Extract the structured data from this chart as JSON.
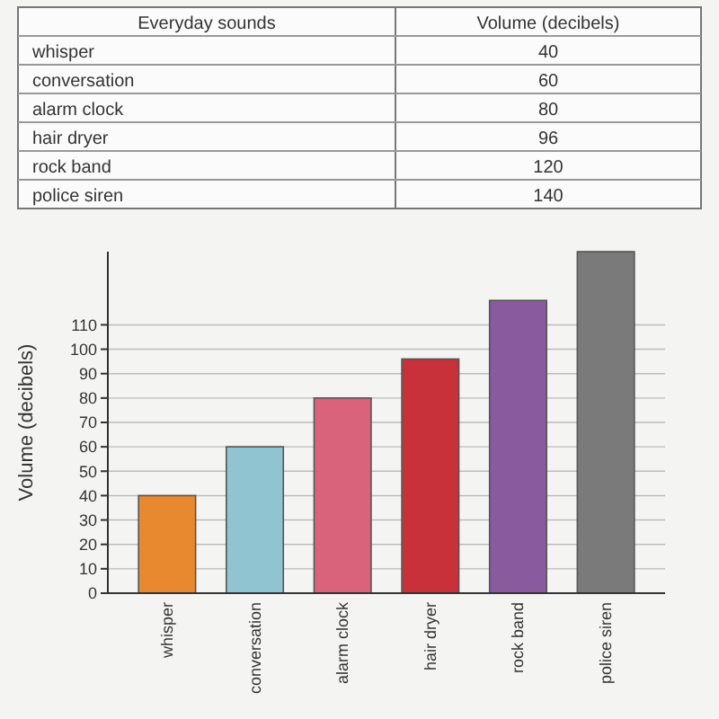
{
  "chart_data": [
    {
      "type": "other",
      "annotations": [
        "Everyday sounds",
        "Volume (decibels)",
        "whisper",
        "40",
        "conversation",
        "60",
        "alarm clock",
        "80",
        "hair dryer",
        "96",
        "rock band",
        "120",
        "police siren",
        "140"
      ]
    },
    {
      "type": "bar",
      "ylabel": "Volume (decibels)",
      "categories": [
        "whisper",
        "conversation",
        "alarm clock",
        "hair dryer",
        "rock band",
        "police siren"
      ],
      "values": [
        40,
        60,
        80,
        96,
        120,
        140
      ],
      "colors": [
        "#e8892f",
        "#8fc4d0",
        "#d9637a",
        "#c8303a",
        "#8a5a9e",
        "#7a7a7a"
      ],
      "ylim": [
        0,
        140
      ],
      "yticks": [
        0,
        10,
        20,
        30,
        40,
        50,
        60,
        70,
        80,
        90,
        100,
        110
      ],
      "grid": "y"
    }
  ]
}
